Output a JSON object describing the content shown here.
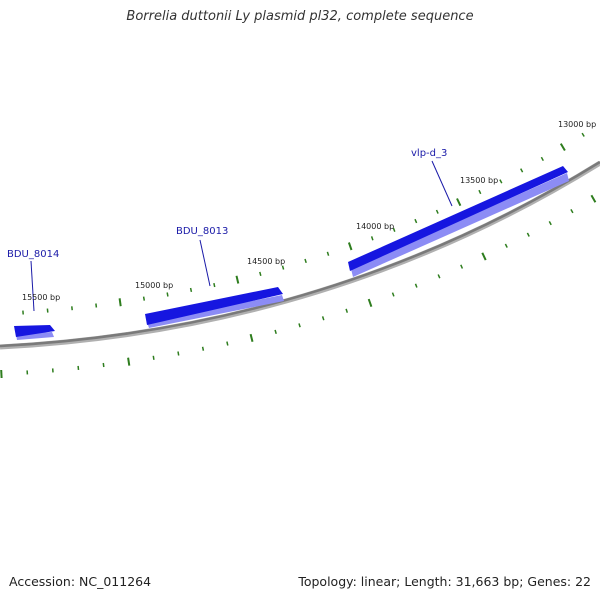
{
  "title": "Borrelia duttonii Ly plasmid pl32, complete sequence",
  "footer": {
    "accession": "Accession: NC_011264",
    "summary": "Topology: linear; Length: 31,663 bp; Genes: 22"
  },
  "colors": {
    "gene": "#1616e0",
    "gene_shadow": "#8c8cf5",
    "backbone": "#7a7a7a",
    "tick": "#2e7d1e",
    "label_line": "#1a1aa8"
  },
  "ticks": [
    {
      "label": "13000 bp"
    },
    {
      "label": "13500 bp"
    },
    {
      "label": "14000 bp"
    },
    {
      "label": "14500 bp"
    },
    {
      "label": "15000 bp"
    },
    {
      "label": "15500 bp"
    }
  ],
  "genes": [
    {
      "name": "vlp-d_3"
    },
    {
      "name": "BDU_8013"
    },
    {
      "name": "BDU_8014"
    }
  ]
}
